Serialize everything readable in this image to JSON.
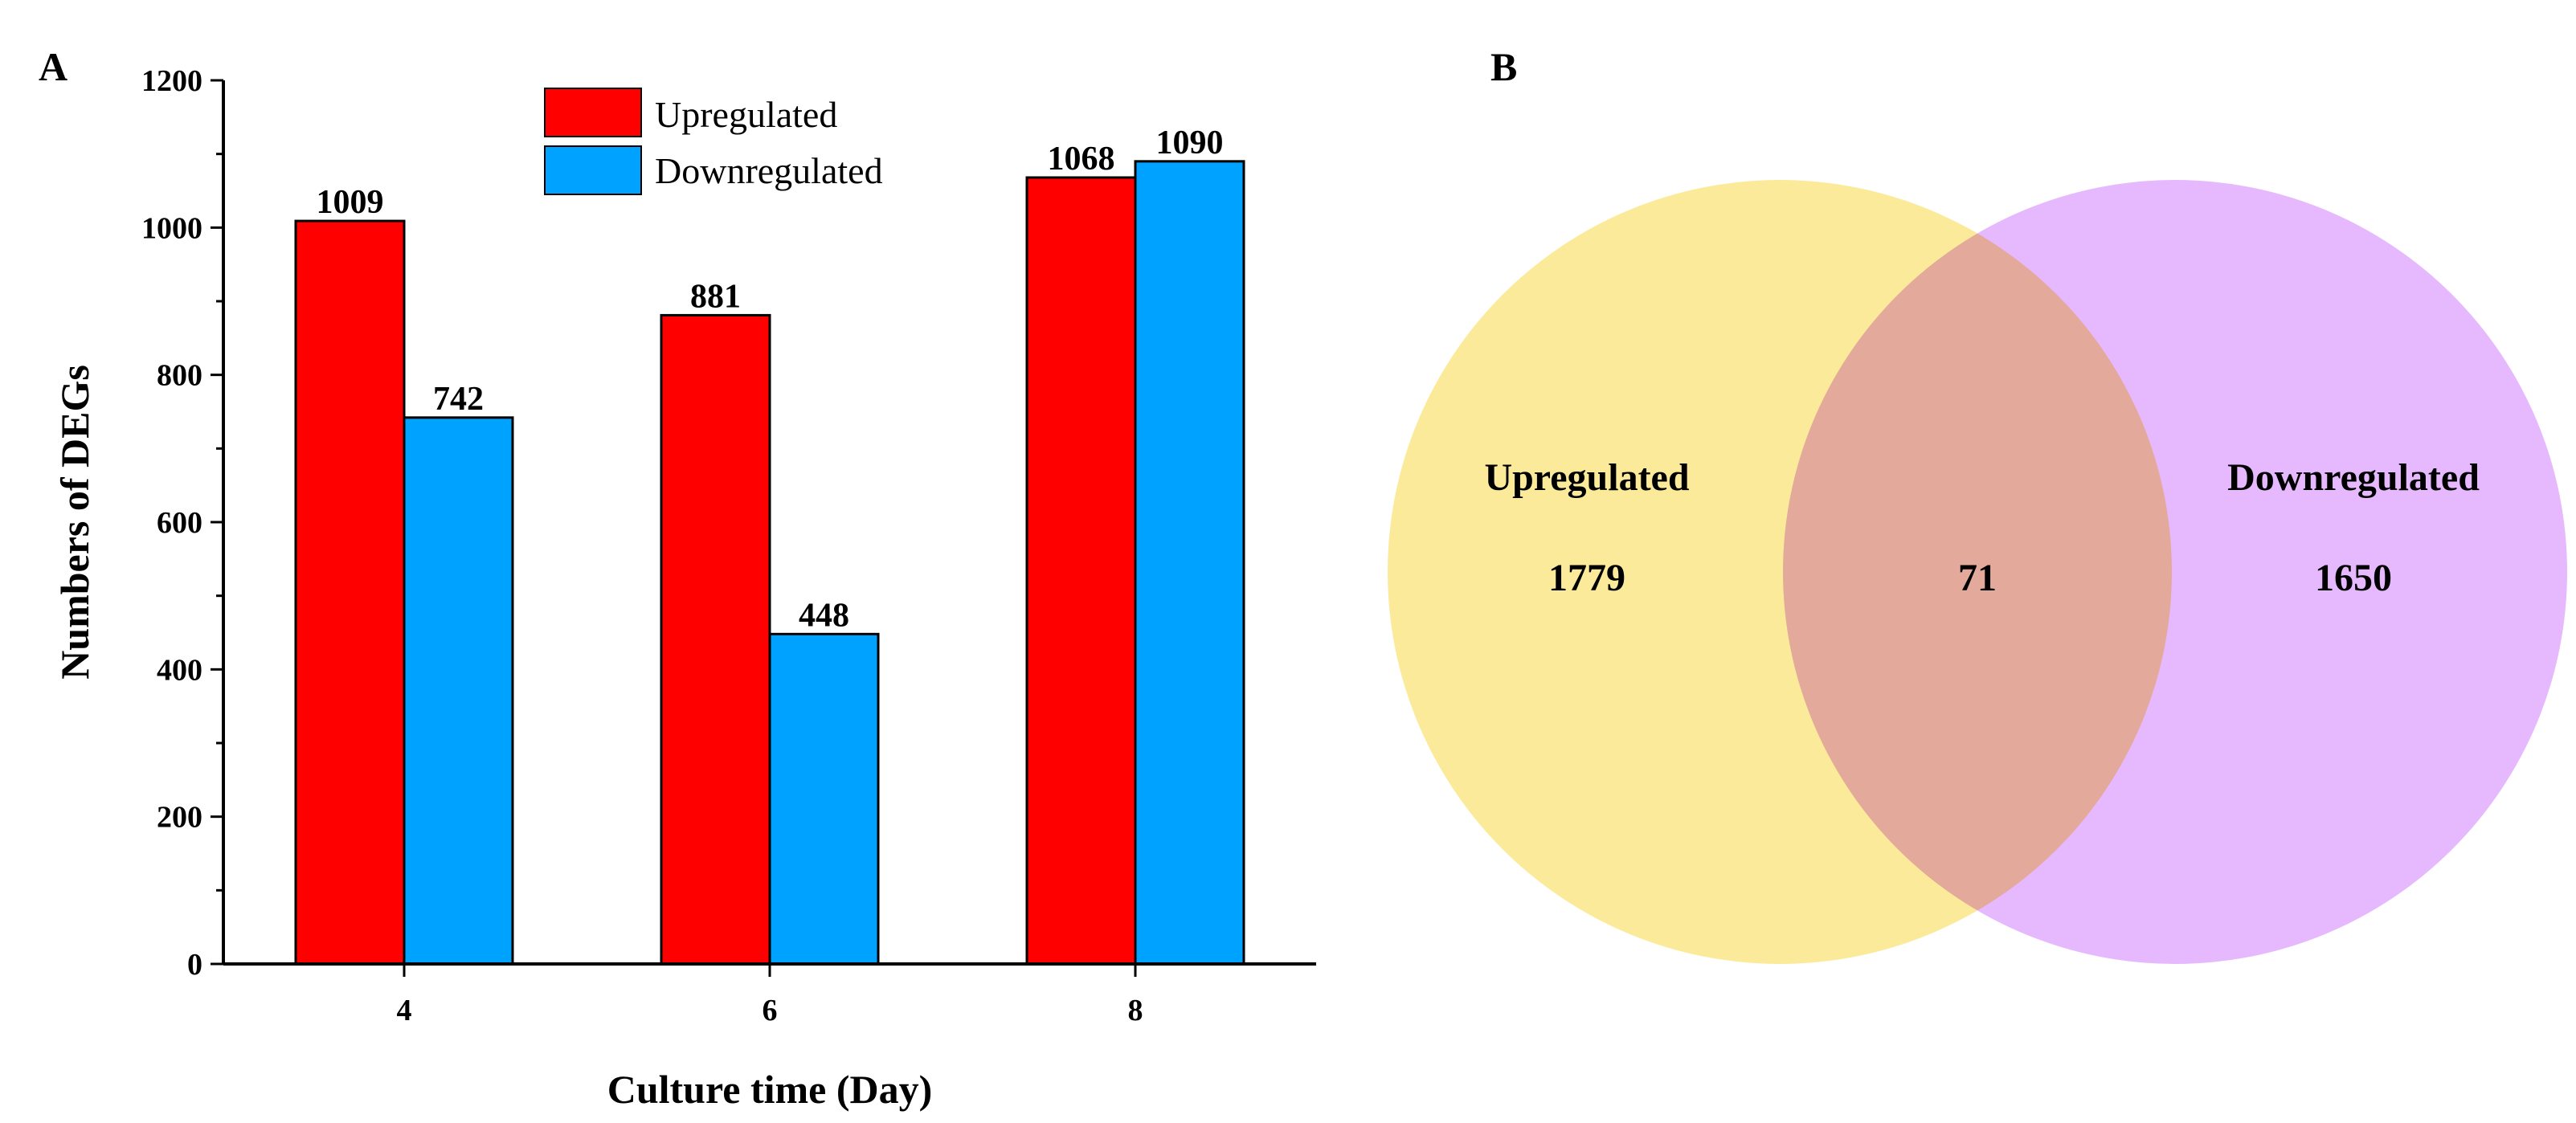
{
  "panels": {
    "a": "A",
    "b": "B"
  },
  "chart_data": [
    {
      "type": "bar",
      "panel": "A",
      "title": "",
      "xlabel": "Culture time (Day)",
      "ylabel": "Numbers of DEGs",
      "categories": [
        "4",
        "6",
        "8"
      ],
      "series": [
        {
          "name": "Upregulated",
          "color": "#ff0000",
          "values": [
            1009,
            881,
            1068
          ]
        },
        {
          "name": "Downregulated",
          "color": "#00a2ff",
          "values": [
            742,
            448,
            1090
          ]
        }
      ],
      "ylim": [
        0,
        1200
      ],
      "yticks": [
        "0",
        "200",
        "400",
        "600",
        "800",
        "1000",
        "1200"
      ],
      "legend": "top-center",
      "grid": false
    },
    {
      "type": "venn",
      "panel": "B",
      "sets": [
        {
          "name": "Upregulated",
          "color": "#fce68a",
          "unique": 1779
        },
        {
          "name": "Downregulated",
          "color": "#e0a6fc",
          "unique": 1650
        }
      ],
      "intersection": 71
    }
  ]
}
